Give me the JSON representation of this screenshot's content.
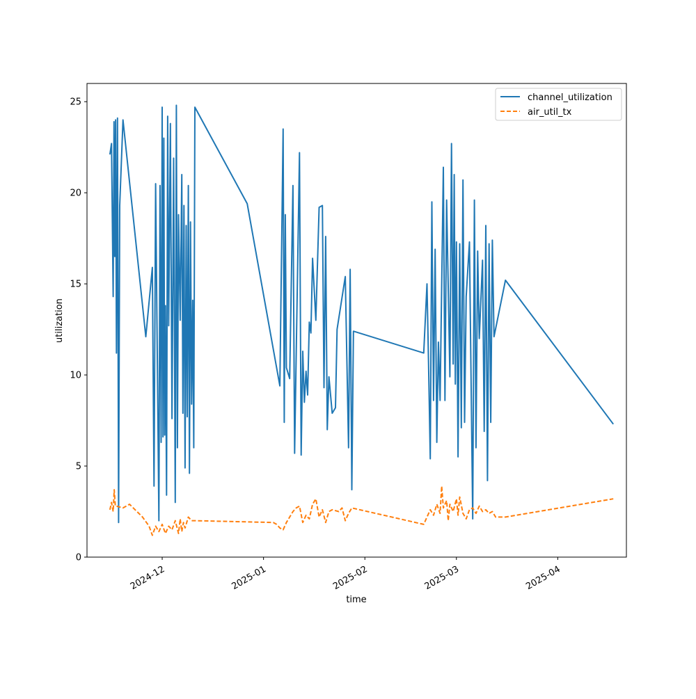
{
  "chart_data": {
    "type": "line",
    "title": "",
    "xlabel": "time",
    "ylabel": "utilization",
    "x_type": "date",
    "xlim": [
      "2024-11-08",
      "2025-04-22"
    ],
    "ylim": [
      0,
      26
    ],
    "grid": false,
    "legend_position": "top-right",
    "x_ticks": [
      {
        "date": "2024-12-01",
        "label": "2024-12"
      },
      {
        "date": "2025-01-01",
        "label": "2025-01"
      },
      {
        "date": "2025-02-01",
        "label": "2025-02"
      },
      {
        "date": "2025-03-01",
        "label": "2025-03"
      },
      {
        "date": "2025-04-01",
        "label": "2025-04"
      }
    ],
    "y_ticks": [
      {
        "value": 0,
        "label": "0"
      },
      {
        "value": 5,
        "label": "5"
      },
      {
        "value": 10,
        "label": "10"
      },
      {
        "value": 15,
        "label": "15"
      },
      {
        "value": 20,
        "label": "20"
      },
      {
        "value": 25,
        "label": "25"
      }
    ],
    "series": [
      {
        "name": "channel_utilization",
        "color": "#1f77b4",
        "style": "solid",
        "points": [
          [
            "2024-11-15",
            22.1
          ],
          [
            "2024-11-15",
            22.7
          ],
          [
            "2024-11-16",
            14.3
          ],
          [
            "2024-11-16",
            23.9
          ],
          [
            "2024-11-16",
            16.5
          ],
          [
            "2024-11-16",
            24.0
          ],
          [
            "2024-11-17",
            11.2
          ],
          [
            "2024-11-17",
            24.1
          ],
          [
            "2024-11-17",
            1.9
          ],
          [
            "2024-11-18",
            19.3
          ],
          [
            "2024-11-19",
            24.0
          ],
          [
            "2024-11-26",
            12.1
          ],
          [
            "2024-11-28",
            15.9
          ],
          [
            "2024-11-28",
            3.9
          ],
          [
            "2024-11-29",
            20.5
          ],
          [
            "2024-11-30",
            2.0
          ],
          [
            "2024-11-30",
            20.4
          ],
          [
            "2024-11-30",
            6.3
          ],
          [
            "2024-12-01",
            24.7
          ],
          [
            "2024-12-01",
            6.6
          ],
          [
            "2024-12-01",
            23.0
          ],
          [
            "2024-12-01",
            6.7
          ],
          [
            "2024-12-02",
            13.8
          ],
          [
            "2024-12-02",
            3.4
          ],
          [
            "2024-12-02",
            24.2
          ],
          [
            "2024-12-03",
            12.7
          ],
          [
            "2024-12-03",
            23.8
          ],
          [
            "2024-12-04",
            7.6
          ],
          [
            "2024-12-04",
            21.9
          ],
          [
            "2024-12-05",
            3.0
          ],
          [
            "2024-12-05",
            24.8
          ],
          [
            "2024-12-05",
            6.0
          ],
          [
            "2024-12-06",
            18.8
          ],
          [
            "2024-12-06",
            13.0
          ],
          [
            "2024-12-07",
            21.0
          ],
          [
            "2024-12-07",
            7.9
          ],
          [
            "2024-12-07",
            19.3
          ],
          [
            "2024-12-08",
            4.9
          ],
          [
            "2024-12-08",
            18.2
          ],
          [
            "2024-12-08",
            7.7
          ],
          [
            "2024-12-09",
            20.4
          ],
          [
            "2024-12-09",
            4.6
          ],
          [
            "2024-12-09",
            18.4
          ],
          [
            "2024-12-10",
            8.4
          ],
          [
            "2024-12-10",
            14.1
          ],
          [
            "2024-12-10",
            6.0
          ],
          [
            "2024-12-11",
            24.7
          ],
          [
            "2024-12-27",
            19.4
          ],
          [
            "2025-01-06",
            9.4
          ],
          [
            "2025-01-07",
            23.5
          ],
          [
            "2025-01-07",
            7.4
          ],
          [
            "2025-01-07",
            18.8
          ],
          [
            "2025-01-08",
            10.4
          ],
          [
            "2025-01-09",
            9.8
          ],
          [
            "2025-01-10",
            20.4
          ],
          [
            "2025-01-10",
            5.7
          ],
          [
            "2025-01-12",
            22.2
          ],
          [
            "2025-01-12",
            5.6
          ],
          [
            "2025-01-13",
            11.3
          ],
          [
            "2025-01-13",
            8.5
          ],
          [
            "2025-01-14",
            10.2
          ],
          [
            "2025-01-14",
            8.9
          ],
          [
            "2025-01-15",
            12.9
          ],
          [
            "2025-01-15",
            12.3
          ],
          [
            "2025-01-16",
            16.4
          ],
          [
            "2025-01-17",
            13.0
          ],
          [
            "2025-01-18",
            19.2
          ],
          [
            "2025-01-19",
            19.3
          ],
          [
            "2025-01-19",
            9.3
          ],
          [
            "2025-01-20",
            17.6
          ],
          [
            "2025-01-20",
            7.0
          ],
          [
            "2025-01-21",
            9.9
          ],
          [
            "2025-01-22",
            7.9
          ],
          [
            "2025-01-23",
            8.2
          ],
          [
            "2025-01-23",
            12.5
          ],
          [
            "2025-01-26",
            15.4
          ],
          [
            "2025-01-27",
            6.0
          ],
          [
            "2025-01-27",
            15.8
          ],
          [
            "2025-01-28",
            3.7
          ],
          [
            "2025-01-28",
            12.4
          ],
          [
            "2025-02-19",
            11.2
          ],
          [
            "2025-02-20",
            15.0
          ],
          [
            "2025-02-20",
            10.5
          ],
          [
            "2025-02-21",
            5.4
          ],
          [
            "2025-02-21",
            19.5
          ],
          [
            "2025-02-22",
            8.6
          ],
          [
            "2025-02-22",
            16.9
          ],
          [
            "2025-02-23",
            6.3
          ],
          [
            "2025-02-23",
            11.8
          ],
          [
            "2025-02-24",
            8.6
          ],
          [
            "2025-02-25",
            21.4
          ],
          [
            "2025-02-25",
            8.6
          ],
          [
            "2025-02-26",
            19.6
          ],
          [
            "2025-02-27",
            9.9
          ],
          [
            "2025-02-27",
            22.7
          ],
          [
            "2025-02-28",
            10.6
          ],
          [
            "2025-02-28",
            21.0
          ],
          [
            "2025-02-28",
            9.5
          ],
          [
            "2025-03-01",
            17.3
          ],
          [
            "2025-03-01",
            5.5
          ],
          [
            "2025-03-02",
            17.2
          ],
          [
            "2025-03-02",
            7.1
          ],
          [
            "2025-03-03",
            20.7
          ],
          [
            "2025-03-03",
            7.4
          ],
          [
            "2025-03-04",
            14.3
          ],
          [
            "2025-03-05",
            17.3
          ],
          [
            "2025-03-06",
            2.1
          ],
          [
            "2025-03-06",
            19.6
          ],
          [
            "2025-03-07",
            6.0
          ],
          [
            "2025-03-07",
            16.8
          ],
          [
            "2025-03-08",
            12.0
          ],
          [
            "2025-03-09",
            16.3
          ],
          [
            "2025-03-09",
            6.9
          ],
          [
            "2025-03-10",
            18.2
          ],
          [
            "2025-03-10",
            4.2
          ],
          [
            "2025-03-11",
            17.2
          ],
          [
            "2025-03-11",
            7.4
          ],
          [
            "2025-03-12",
            17.4
          ],
          [
            "2025-03-12",
            12.1
          ],
          [
            "2025-03-16",
            15.2
          ],
          [
            "2025-04-18",
            7.3
          ]
        ]
      },
      {
        "name": "air_util_tx",
        "color": "#ff7f0e",
        "style": "dashed",
        "points": [
          [
            "2024-11-15",
            2.6
          ],
          [
            "2024-11-15",
            3.0
          ],
          [
            "2024-11-16",
            2.5
          ],
          [
            "2024-11-16",
            3.7
          ],
          [
            "2024-11-16",
            2.8
          ],
          [
            "2024-11-17",
            2.8
          ],
          [
            "2024-11-19",
            2.7
          ],
          [
            "2024-11-21",
            2.9
          ],
          [
            "2024-11-25",
            2.2
          ],
          [
            "2024-11-27",
            1.7
          ],
          [
            "2024-11-28",
            1.2
          ],
          [
            "2024-11-29",
            1.7
          ],
          [
            "2024-11-30",
            1.4
          ],
          [
            "2024-12-01",
            1.8
          ],
          [
            "2024-12-02",
            1.3
          ],
          [
            "2024-12-03",
            1.7
          ],
          [
            "2024-12-04",
            1.5
          ],
          [
            "2024-12-05",
            2.0
          ],
          [
            "2024-12-06",
            1.3
          ],
          [
            "2024-12-06",
            2.1
          ],
          [
            "2024-12-07",
            1.4
          ],
          [
            "2024-12-07",
            1.9
          ],
          [
            "2024-12-08",
            1.6
          ],
          [
            "2024-12-09",
            2.2
          ],
          [
            "2024-12-10",
            2.0
          ],
          [
            "2024-12-11",
            2.0
          ],
          [
            "2025-01-04",
            1.9
          ],
          [
            "2025-01-05",
            1.8
          ],
          [
            "2025-01-06",
            1.6
          ],
          [
            "2025-01-07",
            1.5
          ],
          [
            "2025-01-08",
            1.9
          ],
          [
            "2025-01-09",
            2.2
          ],
          [
            "2025-01-10",
            2.5
          ],
          [
            "2025-01-11",
            2.7
          ],
          [
            "2025-01-12",
            2.8
          ],
          [
            "2025-01-13",
            1.9
          ],
          [
            "2025-01-14",
            2.3
          ],
          [
            "2025-01-15",
            2.1
          ],
          [
            "2025-01-16",
            2.9
          ],
          [
            "2025-01-17",
            3.2
          ],
          [
            "2025-01-18",
            2.2
          ],
          [
            "2025-01-19",
            2.6
          ],
          [
            "2025-01-20",
            1.9
          ],
          [
            "2025-01-21",
            2.5
          ],
          [
            "2025-01-22",
            2.6
          ],
          [
            "2025-01-24",
            2.5
          ],
          [
            "2025-01-25",
            2.7
          ],
          [
            "2025-01-26",
            2.0
          ],
          [
            "2025-01-27",
            2.4
          ],
          [
            "2025-01-28",
            2.7
          ],
          [
            "2025-02-19",
            1.8
          ],
          [
            "2025-02-20",
            2.2
          ],
          [
            "2025-02-21",
            2.6
          ],
          [
            "2025-02-22",
            2.3
          ],
          [
            "2025-02-23",
            2.9
          ],
          [
            "2025-02-24",
            2.4
          ],
          [
            "2025-02-24",
            3.9
          ],
          [
            "2025-02-25",
            2.7
          ],
          [
            "2025-02-26",
            3.1
          ],
          [
            "2025-02-26",
            2.0
          ],
          [
            "2025-02-27",
            2.9
          ],
          [
            "2025-02-28",
            2.5
          ],
          [
            "2025-03-01",
            3.2
          ],
          [
            "2025-03-01",
            2.3
          ],
          [
            "2025-03-02",
            3.3
          ],
          [
            "2025-03-03",
            2.4
          ],
          [
            "2025-03-04",
            2.1
          ],
          [
            "2025-03-05",
            2.6
          ],
          [
            "2025-03-06",
            2.7
          ],
          [
            "2025-03-07",
            2.4
          ],
          [
            "2025-03-08",
            2.8
          ],
          [
            "2025-03-09",
            2.5
          ],
          [
            "2025-03-10",
            2.6
          ],
          [
            "2025-03-11",
            2.4
          ],
          [
            "2025-03-12",
            2.5
          ],
          [
            "2025-03-13",
            2.2
          ],
          [
            "2025-03-16",
            2.2
          ],
          [
            "2025-04-18",
            3.2
          ]
        ]
      }
    ]
  }
}
